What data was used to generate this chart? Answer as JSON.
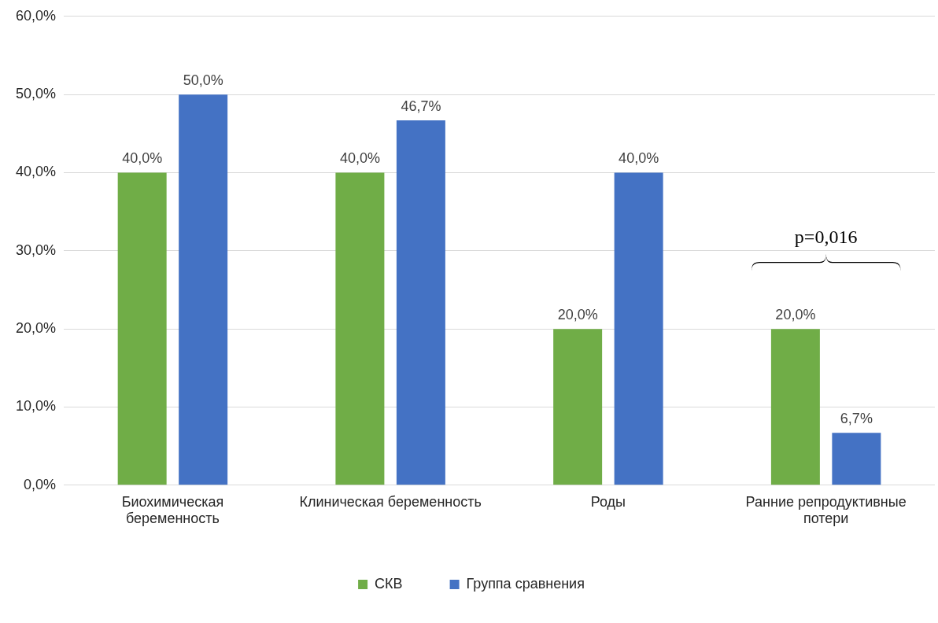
{
  "chart_data": {
    "type": "bar",
    "categories": [
      "Биохимическая беременность",
      "Клиническая беременность",
      "Роды",
      "Ранние репродуктивные потери"
    ],
    "series": [
      {
        "name": "СКВ",
        "color": "#70ad47",
        "values": [
          40,
          40,
          20,
          20
        ],
        "value_labels": [
          "40,0%",
          "40,0%",
          "20,0%",
          "20,0%"
        ]
      },
      {
        "name": "Группа сравнения",
        "color": "#4472c4",
        "values": [
          50,
          46.7,
          40,
          6.7
        ],
        "value_labels": [
          "50,0%",
          "46,7%",
          "40,0%",
          "6,7%"
        ]
      }
    ],
    "ylim": [
      0,
      60
    ],
    "yticks": [
      {
        "value": 0,
        "label": "0,0%"
      },
      {
        "value": 10,
        "label": "10,0%"
      },
      {
        "value": 20,
        "label": "20,0%"
      },
      {
        "value": 30,
        "label": "30,0%"
      },
      {
        "value": 40,
        "label": "40,0%"
      },
      {
        "value": 50,
        "label": "50,0%"
      },
      {
        "value": 60,
        "label": "60,0%"
      }
    ],
    "grid": "y",
    "legend": "bottom",
    "annotations": [
      "p=0,016"
    ]
  }
}
